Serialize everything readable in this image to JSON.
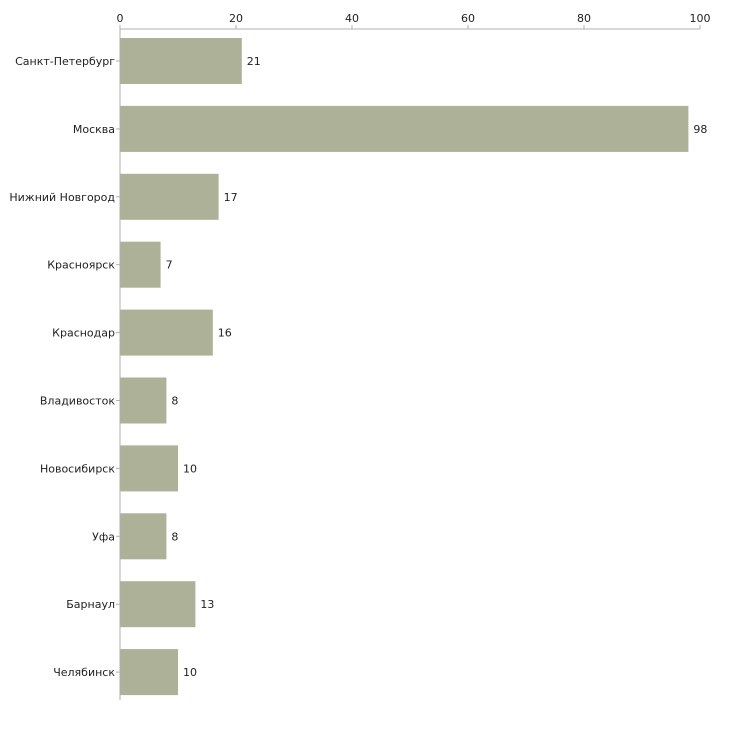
{
  "chart_data": {
    "type": "bar",
    "orientation": "horizontal",
    "title": "",
    "xlabel": "",
    "ylabel": "",
    "categories": [
      "Санкт-Петербург",
      "Москва",
      "Нижний Новгород",
      "Красноярск",
      "Краснодар",
      "Владивосток",
      "Новосибирск",
      "Уфа",
      "Барнаул",
      "Челябинск"
    ],
    "values": [
      21,
      98,
      17,
      7,
      16,
      8,
      10,
      8,
      13,
      10
    ],
    "xlim": [
      0,
      100
    ],
    "xticks": [
      0,
      20,
      40,
      60,
      80,
      100
    ],
    "axis_position": "top",
    "grid": false,
    "legend": "none",
    "bar_color": "#adb197",
    "axis_color": "#b0b0b0"
  }
}
